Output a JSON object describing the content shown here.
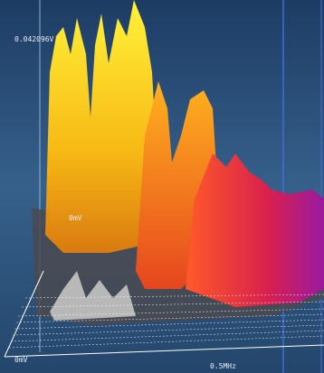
{
  "labels": {
    "amplitude_max": "0.042096V",
    "amplitude_zero_back": "0mV",
    "amplitude_zero_front": "0mV",
    "frequency_tick": "0.5MHz"
  }
}
